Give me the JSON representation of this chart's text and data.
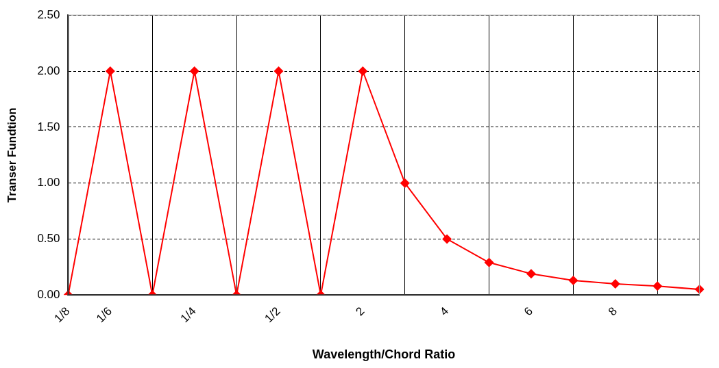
{
  "chart_data": {
    "type": "line",
    "xlabel": "Wavelength/Chord Ratio",
    "ylabel": "Transer Fundtion",
    "categories": [
      "1/8",
      "1/6",
      null,
      "1/4",
      null,
      "1/2",
      null,
      "2",
      null,
      "4",
      null,
      "6",
      null,
      "8",
      null,
      null
    ],
    "series": [
      {
        "color": "#ff0000",
        "values": [
          0,
          2,
          0,
          2,
          0,
          2,
          0,
          2,
          1,
          0.5,
          0.29,
          0.19,
          0.13,
          0.1,
          0.08,
          0.05
        ]
      }
    ],
    "ylim": [
      0,
      2.5
    ],
    "yticks": [
      {
        "value": 0,
        "label": "0.00"
      },
      {
        "value": 0.5,
        "label": "0.50"
      },
      {
        "value": 1,
        "label": "1.00"
      },
      {
        "value": 1.5,
        "label": "1.50"
      },
      {
        "value": 2,
        "label": "2.00"
      },
      {
        "value": 2.5,
        "label": "2.50"
      }
    ],
    "grid": true,
    "legend": false,
    "marker": "diamond",
    "line_style": "solid"
  }
}
